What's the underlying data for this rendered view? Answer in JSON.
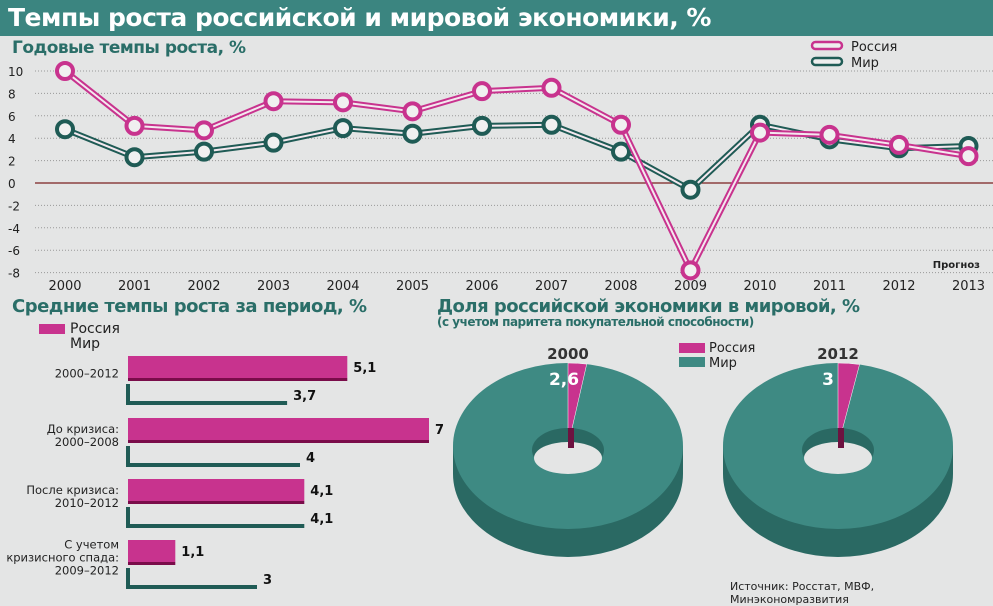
{
  "title": "Темпы роста российской и мировой экономики, %",
  "colors": {
    "russia": "#c8338e",
    "world": "#1f5b55",
    "donut_world": "#3e8a83",
    "donut_side": "#2a6963"
  },
  "chart_data": [
    {
      "type": "line",
      "title": "Годовые темпы роста, %",
      "categories": [
        "2000",
        "2001",
        "2002",
        "2003",
        "2004",
        "2005",
        "2006",
        "2007",
        "2008",
        "2009",
        "2010",
        "2011",
        "2012",
        "2013"
      ],
      "series": [
        {
          "name": "Россия",
          "values": [
            10,
            5.1,
            4.7,
            7.3,
            7.2,
            6.4,
            8.2,
            8.5,
            5.2,
            -7.8,
            4.5,
            4.3,
            3.4,
            2.4
          ]
        },
        {
          "name": "Мир",
          "values": [
            4.8,
            2.3,
            2.8,
            3.6,
            4.9,
            4.4,
            5.1,
            5.2,
            2.8,
            -0.6,
            5.2,
            3.9,
            3.1,
            3.3
          ]
        }
      ],
      "yticks": [
        "10",
        "8",
        "6",
        "4",
        "2",
        "0",
        "-2",
        "-4",
        "-6",
        "-8"
      ],
      "ylim": [
        -8,
        10
      ],
      "annotation": "Прогноз",
      "legend": "top-right"
    },
    {
      "type": "bar",
      "title": "Средние темпы роста за период, %",
      "categories": [
        "2000–2012",
        "До кризиса: 2000–2008",
        "После кризиса: 2010–2012",
        "С учетом кризисного спада: 2009–2012"
      ],
      "category_lines": [
        [
          "2000–2012"
        ],
        [
          "До кризиса:",
          "2000–2008"
        ],
        [
          "После кризиса:",
          "2010–2012"
        ],
        [
          "С учетом",
          "кризисного спада:",
          "2009–2012"
        ]
      ],
      "series": [
        {
          "name": "Россия",
          "values": [
            5.1,
            7,
            4.1,
            1.1
          ],
          "labels": [
            "5,1",
            "7",
            "4,1",
            "1,1"
          ]
        },
        {
          "name": "Мир",
          "values": [
            3.7,
            4,
            4.1,
            3
          ],
          "labels": [
            "3,7",
            "4",
            "4,1",
            "3"
          ]
        }
      ]
    },
    {
      "type": "pie",
      "title": "Доля российской экономики в мировой, %",
      "subtitle": "(с учетом паритета покупательной способности)",
      "legend": [
        "Россия",
        "Мир"
      ],
      "pies": [
        {
          "label": "2000",
          "russia": 2.6,
          "russia_label": "2,6"
        },
        {
          "label": "2012",
          "russia": 3,
          "russia_label": "3"
        }
      ]
    }
  ],
  "source": "Источник: Росстат, МВФ, Минэкономразвития"
}
